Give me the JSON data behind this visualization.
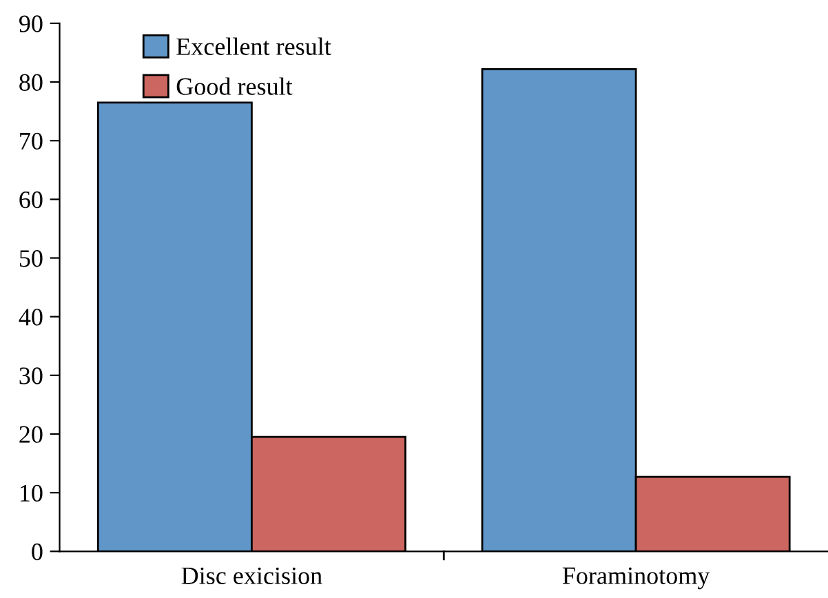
{
  "chart_data": {
    "type": "bar",
    "categories": [
      "Disc exicision",
      "Foraminotomy"
    ],
    "series": [
      {
        "name": "Excellent result",
        "color": "#6096c8",
        "values": [
          76.5,
          82.2
        ]
      },
      {
        "name": "Good result",
        "color": "#cc6660",
        "values": [
          19.5,
          12.7
        ]
      }
    ],
    "ylim": [
      0,
      90
    ],
    "yticks": [
      0,
      10,
      20,
      30,
      40,
      50,
      60,
      70,
      80,
      90
    ],
    "grid": false,
    "legend": "top left"
  }
}
